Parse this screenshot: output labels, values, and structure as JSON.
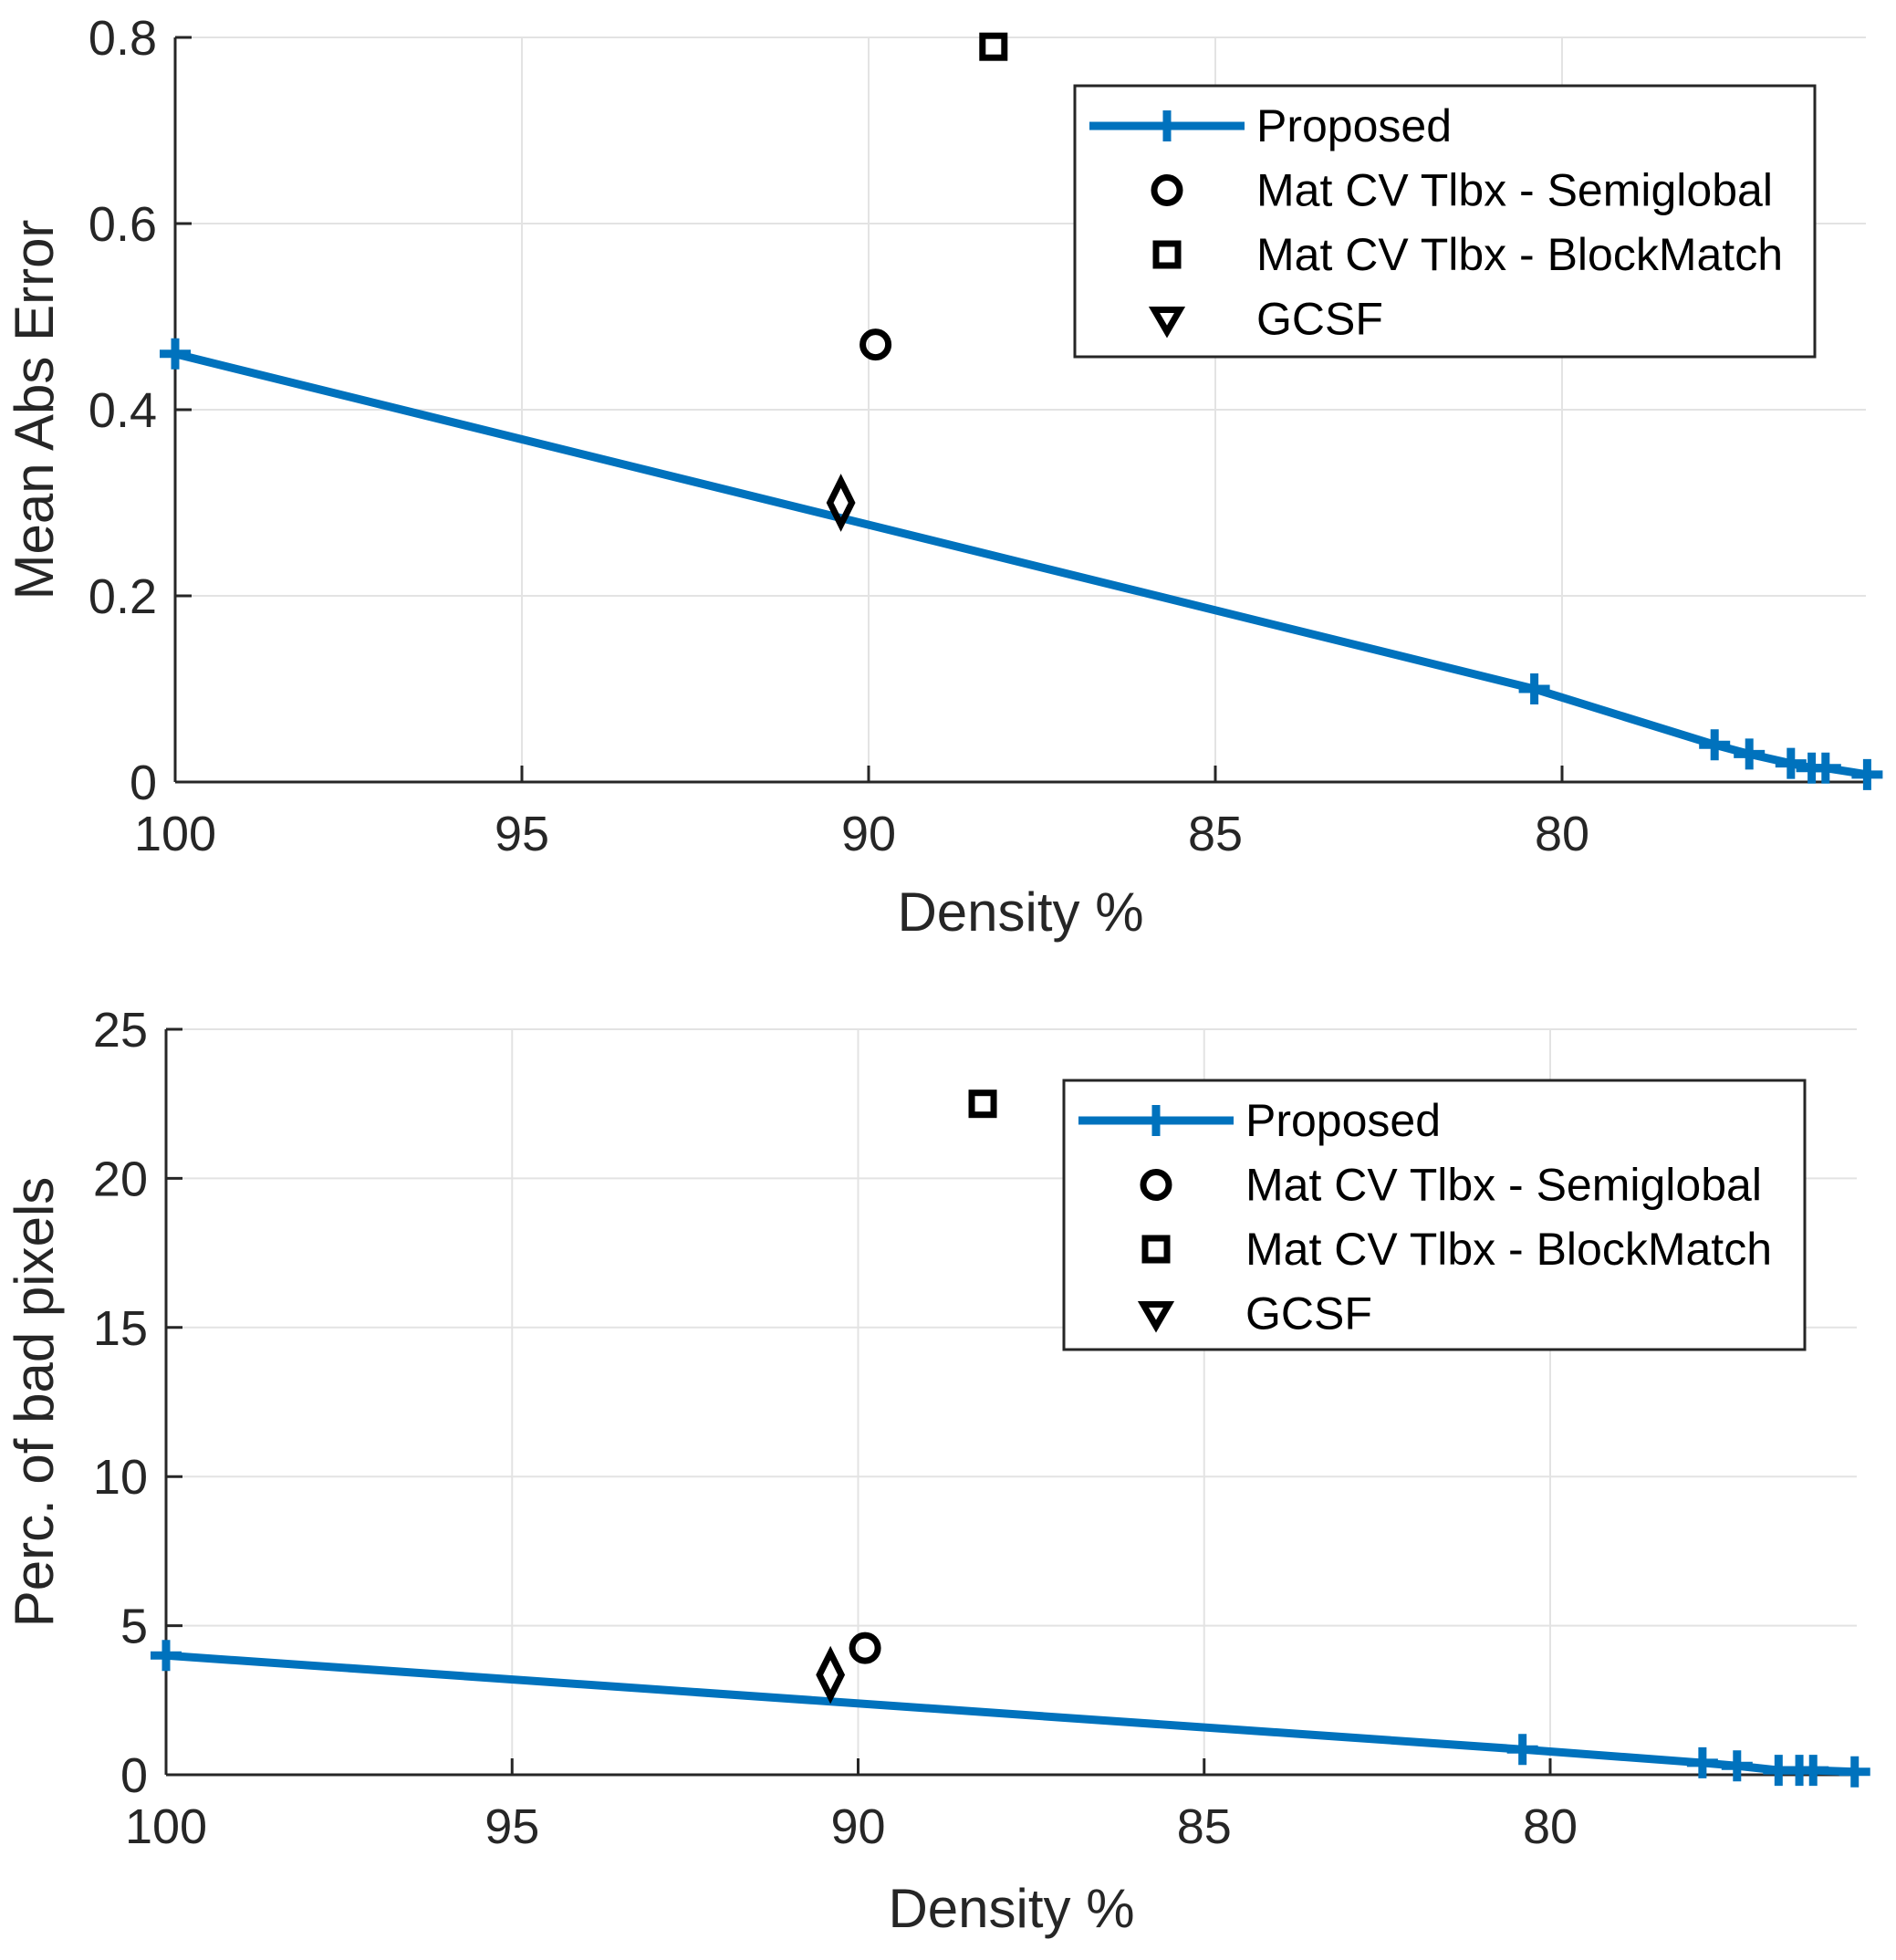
{
  "chart_data": [
    {
      "type": "line",
      "title": "",
      "xlabel": "Density %",
      "ylabel": "Mean Abs Error",
      "xlim": [
        75.6,
        100
      ],
      "x_reversed": true,
      "ylim": [
        0,
        0.8
      ],
      "grid": true,
      "xticks": [
        100,
        95,
        90,
        85,
        80
      ],
      "xtick_labels": [
        "100",
        "95",
        "90",
        "85",
        "80"
      ],
      "yticks": [
        0,
        0.2,
        0.4,
        0.6,
        0.8
      ],
      "ytick_labels": [
        "0",
        "0.2",
        "0.4",
        "0.6",
        "0.8"
      ],
      "legend_position": "top-right",
      "series": [
        {
          "name": "Proposed",
          "marker": "plus",
          "line": true,
          "color": "#0072BD",
          "x": [
            100,
            80.4,
            77.8,
            77.3,
            76.7,
            76.4,
            76.2,
            75.6
          ],
          "y": [
            0.46,
            0.1,
            0.04,
            0.03,
            0.02,
            0.015,
            0.015,
            0.008
          ]
        },
        {
          "name": "Mat CV Tlbx - Semiglobal",
          "marker": "circle",
          "line": false,
          "color": "#000000",
          "x": [
            89.9
          ],
          "y": [
            0.47
          ]
        },
        {
          "name": "Mat CV Tlbx - BlockMatch",
          "marker": "square",
          "line": false,
          "color": "#000000",
          "x": [
            88.2
          ],
          "y": [
            0.79
          ]
        },
        {
          "name": "GCSF",
          "marker": "diamond",
          "legend_marker": "triangle-down",
          "line": false,
          "color": "#000000",
          "x": [
            90.4
          ],
          "y": [
            0.3
          ]
        }
      ]
    },
    {
      "type": "line",
      "title": "",
      "xlabel": "Density %",
      "ylabel": "Perc. of bad pixels",
      "xlim": [
        75.6,
        100
      ],
      "x_reversed": true,
      "ylim": [
        0,
        25
      ],
      "grid": true,
      "xticks": [
        100,
        95,
        90,
        85,
        80
      ],
      "xtick_labels": [
        "100",
        "95",
        "90",
        "85",
        "80"
      ],
      "yticks": [
        0,
        5,
        10,
        15,
        20,
        25
      ],
      "ytick_labels": [
        "0",
        "5",
        "10",
        "15",
        "20",
        "25"
      ],
      "legend_position": "top-right",
      "series": [
        {
          "name": "Proposed",
          "marker": "plus",
          "line": true,
          "color": "#0072BD",
          "x": [
            100,
            80.4,
            77.8,
            77.3,
            76.7,
            76.4,
            76.2,
            75.6
          ],
          "y": [
            4.0,
            0.85,
            0.4,
            0.3,
            0.15,
            0.15,
            0.15,
            0.1
          ]
        },
        {
          "name": "Mat CV Tlbx - Semiglobal",
          "marker": "circle",
          "line": false,
          "color": "#000000",
          "x": [
            89.9
          ],
          "y": [
            4.25
          ]
        },
        {
          "name": "Mat CV Tlbx - BlockMatch",
          "marker": "square",
          "line": false,
          "color": "#000000",
          "x": [
            88.2
          ],
          "y": [
            22.5
          ]
        },
        {
          "name": "GCSF",
          "marker": "diamond",
          "legend_marker": "triangle-down",
          "line": false,
          "color": "#000000",
          "x": [
            90.4
          ],
          "y": [
            3.35
          ]
        }
      ]
    }
  ]
}
